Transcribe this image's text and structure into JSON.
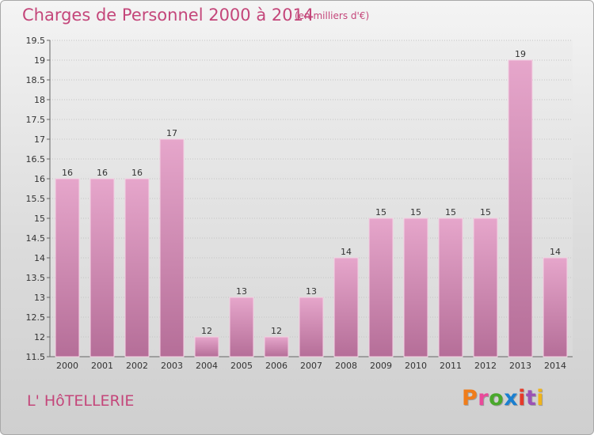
{
  "header": {
    "title": "Charges de Personnel 2000 à 2014",
    "subtitle": "(en milliers d'€)"
  },
  "footer": {
    "label": "L' HôTELLERIE",
    "logo_text": "Proxiti"
  },
  "colors": {
    "bar_light": "#e6a6cb",
    "bar_dark": "#b56e98",
    "title": "#c4467a",
    "logo_letters": [
      "#f07d1a",
      "#e94a9a",
      "#4aa82c",
      "#1a7fd0",
      "#e63a2a",
      "#9c52b5",
      "#f0b41a"
    ]
  },
  "chart_data": {
    "type": "bar",
    "title": "Charges de Personnel 2000 à 2014",
    "subtitle": "(en milliers d'€)",
    "categories": [
      "2000",
      "2001",
      "2002",
      "2003",
      "2004",
      "2005",
      "2006",
      "2007",
      "2008",
      "2009",
      "2010",
      "2011",
      "2012",
      "2013",
      "2014"
    ],
    "values": [
      16,
      16,
      16,
      17,
      12,
      13,
      12,
      13,
      14,
      15,
      15,
      15,
      15,
      19,
      14
    ],
    "data_labels": [
      "16",
      "16",
      "16",
      "17",
      "12",
      "13",
      "12",
      "13",
      "14",
      "15",
      "15",
      "15",
      "15",
      "19",
      "14"
    ],
    "ylim": [
      11.5,
      19.5
    ],
    "yticks": [
      "11.5",
      "12",
      "12.5",
      "13",
      "13.5",
      "14",
      "14.5",
      "15",
      "15.5",
      "16",
      "16.5",
      "17",
      "17.5",
      "18",
      "18.5",
      "19",
      "19.5"
    ],
    "grid": true
  }
}
